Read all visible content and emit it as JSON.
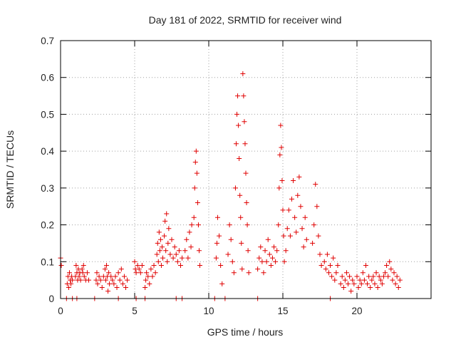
{
  "chart_data": {
    "type": "scatter",
    "title": "Day 181 of 2022, SRMTID for receiver wind",
    "xlabel": "GPS time / hours",
    "ylabel": "SRMTID / TECUs",
    "xlim": [
      0,
      25
    ],
    "ylim": [
      0,
      0.7
    ],
    "xticks": [
      0,
      5,
      10,
      15,
      20
    ],
    "yticks": [
      0,
      0.1,
      0.2,
      0.3,
      0.4,
      0.5,
      0.6,
      0.7
    ],
    "xtick_labels": [
      "0",
      "5",
      "10",
      "15",
      "20"
    ],
    "ytick_labels": [
      "0",
      "0.1",
      "0.2",
      "0.3",
      "0.4",
      "0.5",
      "0.6",
      "0.7"
    ],
    "grid": true,
    "marker": "+",
    "color": "#e00000",
    "series": [
      {
        "name": "SRMTID",
        "points": [
          [
            0.0,
            0.11
          ],
          [
            0.05,
            0.09
          ],
          [
            0.45,
            0.04
          ],
          [
            0.5,
            0.06
          ],
          [
            0.55,
            0.03
          ],
          [
            0.6,
            0.07
          ],
          [
            0.65,
            0.05
          ],
          [
            0.7,
            0.04
          ],
          [
            0.75,
            0.06
          ],
          [
            0.8,
            0.05
          ],
          [
            1.0,
            0.06
          ],
          [
            1.05,
            0.09
          ],
          [
            1.1,
            0.07
          ],
          [
            1.15,
            0.05
          ],
          [
            1.2,
            0.08
          ],
          [
            1.25,
            0.06
          ],
          [
            1.3,
            0.07
          ],
          [
            1.35,
            0.05
          ],
          [
            1.45,
            0.08
          ],
          [
            1.5,
            0.07
          ],
          [
            1.55,
            0.09
          ],
          [
            1.6,
            0.06
          ],
          [
            1.7,
            0.05
          ],
          [
            1.8,
            0.07
          ],
          [
            1.9,
            0.05
          ],
          [
            2.4,
            0.05
          ],
          [
            2.45,
            0.07
          ],
          [
            2.5,
            0.04
          ],
          [
            2.6,
            0.06
          ],
          [
            2.7,
            0.05
          ],
          [
            2.8,
            0.03
          ],
          [
            2.9,
            0.06
          ],
          [
            3.0,
            0.08
          ],
          [
            3.05,
            0.05
          ],
          [
            3.1,
            0.09
          ],
          [
            3.15,
            0.06
          ],
          [
            3.2,
            0.02
          ],
          [
            3.25,
            0.07
          ],
          [
            3.3,
            0.04
          ],
          [
            3.4,
            0.06
          ],
          [
            3.5,
            0.05
          ],
          [
            3.6,
            0.04
          ],
          [
            3.7,
            0.06
          ],
          [
            3.8,
            0.03
          ],
          [
            3.9,
            0.07
          ],
          [
            4.0,
            0.05
          ],
          [
            4.1,
            0.08
          ],
          [
            4.2,
            0.04
          ],
          [
            4.3,
            0.06
          ],
          [
            4.4,
            0.03
          ],
          [
            4.5,
            0.05
          ],
          [
            5.0,
            0.1
          ],
          [
            5.05,
            0.08
          ],
          [
            5.1,
            0.07
          ],
          [
            5.2,
            0.09
          ],
          [
            5.3,
            0.08
          ],
          [
            5.4,
            0.07
          ],
          [
            5.5,
            0.09
          ],
          [
            5.7,
            0.03
          ],
          [
            5.75,
            0.05
          ],
          [
            5.8,
            0.07
          ],
          [
            5.9,
            0.06
          ],
          [
            6.0,
            0.04
          ],
          [
            6.1,
            0.08
          ],
          [
            6.2,
            0.06
          ],
          [
            6.3,
            0.09
          ],
          [
            6.4,
            0.07
          ],
          [
            6.5,
            0.12
          ],
          [
            6.55,
            0.15
          ],
          [
            6.6,
            0.1
          ],
          [
            6.65,
            0.18
          ],
          [
            6.7,
            0.13
          ],
          [
            6.75,
            0.16
          ],
          [
            6.8,
            0.09
          ],
          [
            6.85,
            0.14
          ],
          [
            6.9,
            0.11
          ],
          [
            7.0,
            0.17
          ],
          [
            7.05,
            0.21
          ],
          [
            7.1,
            0.13
          ],
          [
            7.15,
            0.23
          ],
          [
            7.2,
            0.1
          ],
          [
            7.25,
            0.15
          ],
          [
            7.3,
            0.19
          ],
          [
            7.4,
            0.12
          ],
          [
            7.5,
            0.16
          ],
          [
            7.6,
            0.11
          ],
          [
            7.7,
            0.14
          ],
          [
            7.8,
            0.12
          ],
          [
            7.9,
            0.1
          ],
          [
            8.0,
            0.13
          ],
          [
            8.1,
            0.09
          ],
          [
            8.2,
            0.11
          ],
          [
            8.4,
            0.13
          ],
          [
            8.5,
            0.16
          ],
          [
            8.6,
            0.11
          ],
          [
            8.7,
            0.18
          ],
          [
            8.8,
            0.14
          ],
          [
            8.85,
            0.2
          ],
          [
            9.0,
            0.22
          ],
          [
            9.05,
            0.3
          ],
          [
            9.1,
            0.37
          ],
          [
            9.15,
            0.4
          ],
          [
            9.2,
            0.34
          ],
          [
            9.25,
            0.26
          ],
          [
            9.3,
            0.2
          ],
          [
            9.35,
            0.13
          ],
          [
            9.4,
            0.09
          ],
          [
            10.5,
            0.11
          ],
          [
            10.55,
            0.15
          ],
          [
            10.6,
            0.22
          ],
          [
            10.7,
            0.17
          ],
          [
            10.8,
            0.09
          ],
          [
            10.9,
            0.04
          ],
          [
            11.3,
            0.12
          ],
          [
            11.4,
            0.2
          ],
          [
            11.5,
            0.16
          ],
          [
            11.6,
            0.1
          ],
          [
            11.7,
            0.07
          ],
          [
            11.8,
            0.3
          ],
          [
            11.85,
            0.42
          ],
          [
            11.9,
            0.5
          ],
          [
            11.95,
            0.55
          ],
          [
            12.0,
            0.47
          ],
          [
            12.05,
            0.38
          ],
          [
            12.1,
            0.28
          ],
          [
            12.15,
            0.22
          ],
          [
            12.2,
            0.15
          ],
          [
            12.25,
            0.08
          ],
          [
            12.3,
            0.61
          ],
          [
            12.35,
            0.55
          ],
          [
            12.4,
            0.48
          ],
          [
            12.45,
            0.42
          ],
          [
            12.5,
            0.34
          ],
          [
            12.55,
            0.26
          ],
          [
            12.6,
            0.2
          ],
          [
            12.65,
            0.13
          ],
          [
            12.7,
            0.07
          ],
          [
            13.3,
            0.08
          ],
          [
            13.4,
            0.11
          ],
          [
            13.5,
            0.14
          ],
          [
            13.6,
            0.1
          ],
          [
            13.7,
            0.07
          ],
          [
            13.8,
            0.13
          ],
          [
            13.9,
            0.1
          ],
          [
            14.0,
            0.16
          ],
          [
            14.1,
            0.12
          ],
          [
            14.2,
            0.09
          ],
          [
            14.3,
            0.11
          ],
          [
            14.4,
            0.14
          ],
          [
            14.5,
            0.1
          ],
          [
            14.6,
            0.13
          ],
          [
            14.7,
            0.2
          ],
          [
            14.75,
            0.3
          ],
          [
            14.8,
            0.39
          ],
          [
            14.85,
            0.47
          ],
          [
            14.9,
            0.41
          ],
          [
            14.95,
            0.32
          ],
          [
            15.0,
            0.24
          ],
          [
            15.05,
            0.17
          ],
          [
            15.1,
            0.1
          ],
          [
            15.2,
            0.13
          ],
          [
            15.3,
            0.19
          ],
          [
            15.4,
            0.24
          ],
          [
            15.5,
            0.17
          ],
          [
            15.6,
            0.27
          ],
          [
            15.7,
            0.32
          ],
          [
            15.8,
            0.22
          ],
          [
            15.9,
            0.18
          ],
          [
            16.0,
            0.28
          ],
          [
            16.1,
            0.33
          ],
          [
            16.2,
            0.25
          ],
          [
            16.3,
            0.19
          ],
          [
            16.4,
            0.14
          ],
          [
            16.5,
            0.22
          ],
          [
            16.6,
            0.16
          ],
          [
            17.0,
            0.15
          ],
          [
            17.1,
            0.2
          ],
          [
            17.2,
            0.31
          ],
          [
            17.3,
            0.25
          ],
          [
            17.4,
            0.17
          ],
          [
            17.5,
            0.12
          ],
          [
            17.6,
            0.09
          ],
          [
            17.8,
            0.1
          ],
          [
            17.9,
            0.08
          ],
          [
            18.0,
            0.12
          ],
          [
            18.1,
            0.07
          ],
          [
            18.2,
            0.09
          ],
          [
            18.3,
            0.06
          ],
          [
            18.4,
            0.11
          ],
          [
            18.5,
            0.05
          ],
          [
            18.6,
            0.07
          ],
          [
            18.7,
            0.09
          ],
          [
            18.9,
            0.04
          ],
          [
            19.0,
            0.06
          ],
          [
            19.1,
            0.03
          ],
          [
            19.2,
            0.05
          ],
          [
            19.3,
            0.07
          ],
          [
            19.4,
            0.04
          ],
          [
            19.5,
            0.06
          ],
          [
            19.6,
            0.02
          ],
          [
            19.7,
            0.05
          ],
          [
            19.8,
            0.04
          ],
          [
            20.0,
            0.06
          ],
          [
            20.1,
            0.03
          ],
          [
            20.2,
            0.05
          ],
          [
            20.3,
            0.04
          ],
          [
            20.4,
            0.07
          ],
          [
            20.5,
            0.05
          ],
          [
            20.6,
            0.09
          ],
          [
            20.7,
            0.04
          ],
          [
            20.8,
            0.06
          ],
          [
            20.9,
            0.03
          ],
          [
            21.0,
            0.05
          ],
          [
            21.1,
            0.06
          ],
          [
            21.2,
            0.04
          ],
          [
            21.3,
            0.07
          ],
          [
            21.4,
            0.03
          ],
          [
            21.5,
            0.06
          ],
          [
            21.6,
            0.05
          ],
          [
            21.7,
            0.04
          ],
          [
            21.8,
            0.06
          ],
          [
            21.9,
            0.07
          ],
          [
            22.0,
            0.09
          ],
          [
            22.1,
            0.06
          ],
          [
            22.2,
            0.1
          ],
          [
            22.3,
            0.08
          ],
          [
            22.4,
            0.05
          ],
          [
            22.5,
            0.07
          ],
          [
            22.6,
            0.04
          ],
          [
            22.7,
            0.06
          ],
          [
            22.8,
            0.03
          ],
          [
            22.9,
            0.05
          ],
          [
            0.4,
            0.0
          ],
          [
            0.8,
            0.0
          ],
          [
            1.1,
            0.0
          ],
          [
            2.3,
            0.0
          ],
          [
            3.9,
            0.0
          ],
          [
            5.1,
            0.0
          ],
          [
            5.7,
            0.0
          ],
          [
            7.8,
            0.0
          ],
          [
            8.2,
            0.0
          ],
          [
            10.4,
            0.0
          ],
          [
            11.1,
            0.0
          ],
          [
            13.3,
            0.0
          ],
          [
            18.2,
            0.0
          ]
        ]
      }
    ]
  }
}
